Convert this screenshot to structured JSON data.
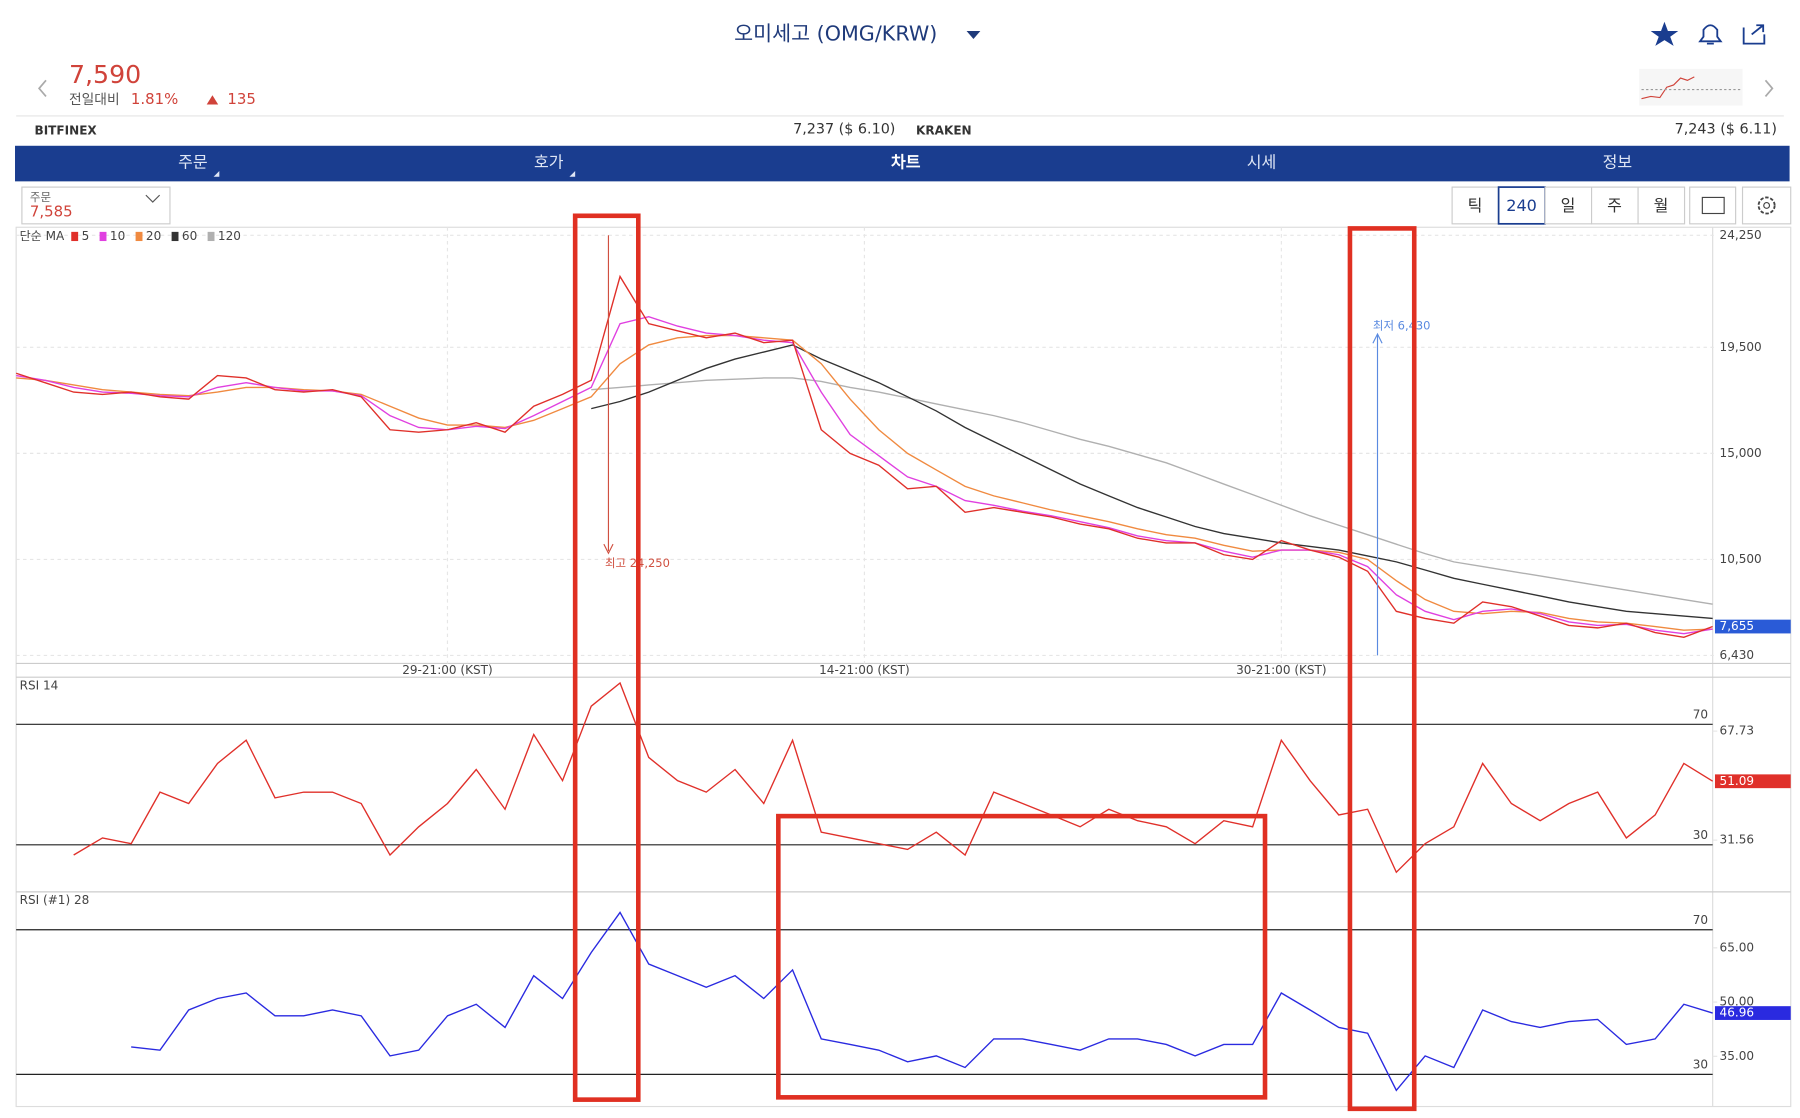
{
  "header": {
    "title": "오미세고 (OMG/KRW)",
    "price": "7,590",
    "change_label": "전일대비",
    "change_pct": "1.81%",
    "change_abs": "135"
  },
  "exchanges": [
    {
      "name": "BITFINEX",
      "price": "7,237 ($ 6.10)"
    },
    {
      "name": "KRAKEN",
      "price": "7,243 ($ 6.11)"
    }
  ],
  "tabs": [
    "주문",
    "호가",
    "차트",
    "시세",
    "정보"
  ],
  "toolbar": {
    "order_label": "주문",
    "order_price": "7,585",
    "periods": [
      "틱",
      "240",
      "일",
      "주",
      "월"
    ]
  },
  "chart_data": [
    {
      "type": "line",
      "legend_title": "단순 MA",
      "grid": true,
      "xlim": [
        0,
        59
      ],
      "xticks": [
        {
          "value": 15,
          "label": "29-21:00 (KST)"
        },
        {
          "value": 29.5,
          "label": "14-21:00 (KST)"
        },
        {
          "value": 44,
          "label": "30-21:00 (KST)"
        }
      ],
      "ylim": [
        6430,
        24250
      ],
      "yticks": [
        {
          "value": 24250,
          "label": "24,250"
        },
        {
          "value": 19500,
          "label": "19,500"
        },
        {
          "value": 15000,
          "label": "15,000"
        },
        {
          "value": 10500,
          "label": "10,500"
        },
        {
          "value": 6430,
          "label": "6,430"
        }
      ],
      "current": {
        "value": 7655,
        "label": "7,655"
      },
      "high": {
        "value": 24250,
        "label": "최고 24,250"
      },
      "low": {
        "value": 6430,
        "label": "최저 6,430"
      },
      "series": [
        {
          "name": "5",
          "color": "#e0302a",
          "values": [
            18400,
            18000,
            17600,
            17500,
            17600,
            17400,
            17300,
            18300,
            18200,
            17700,
            17600,
            17700,
            17400,
            16000,
            15900,
            16000,
            16300,
            15900,
            17000,
            17500,
            18100,
            22500,
            20500,
            20200,
            19900,
            20100,
            19700,
            19800,
            16000,
            15000,
            14500,
            13500,
            13600,
            12500,
            12700,
            12500,
            12300,
            12000,
            11800,
            11400,
            11200,
            11200,
            10700,
            10500,
            11300,
            10900,
            10600,
            10000,
            8300,
            8000,
            7800,
            8700,
            8500,
            8100,
            7700,
            7600,
            7800,
            7400,
            7200,
            7655
          ]
        },
        {
          "name": "10",
          "color": "#e040e0",
          "values": [
            18300,
            18100,
            17800,
            17600,
            17550,
            17450,
            17400,
            17800,
            18000,
            17800,
            17650,
            17650,
            17450,
            16600,
            16100,
            16000,
            16150,
            16050,
            16600,
            17200,
            17800,
            20500,
            20800,
            20400,
            20100,
            20000,
            19800,
            19700,
            17600,
            15800,
            14900,
            14000,
            13600,
            13000,
            12800,
            12550,
            12350,
            12100,
            11850,
            11500,
            11300,
            11200,
            10850,
            10600,
            10900,
            10900,
            10700,
            10200,
            9000,
            8300,
            7950,
            8300,
            8400,
            8200,
            7850,
            7700,
            7750,
            7500,
            7350,
            7550
          ]
        },
        {
          "name": "20",
          "color": "#f08a40",
          "values": [
            18200,
            18100,
            17900,
            17700,
            17600,
            17500,
            17450,
            17600,
            17800,
            17800,
            17700,
            17650,
            17500,
            17000,
            16500,
            16200,
            16200,
            16100,
            16400,
            16900,
            17400,
            18800,
            19600,
            19900,
            20000,
            20000,
            19900,
            19800,
            18800,
            17300,
            16000,
            15000,
            14300,
            13600,
            13200,
            12900,
            12600,
            12350,
            12100,
            11800,
            11550,
            11400,
            11100,
            10850,
            10900,
            10900,
            10800,
            10500,
            9600,
            8800,
            8300,
            8200,
            8300,
            8250,
            8000,
            7850,
            7800,
            7650,
            7500,
            7550
          ]
        },
        {
          "name": "60",
          "color": "#333333",
          "values": [
            null,
            null,
            null,
            null,
            null,
            null,
            null,
            null,
            null,
            null,
            null,
            null,
            null,
            null,
            null,
            null,
            null,
            null,
            null,
            null,
            16900,
            17200,
            17600,
            18100,
            18600,
            19000,
            19300,
            19600,
            19000,
            18500,
            18000,
            17400,
            16800,
            16100,
            15500,
            14900,
            14300,
            13700,
            13200,
            12700,
            12300,
            11900,
            11600,
            11400,
            11200,
            11050,
            10900,
            10650,
            10400,
            10050,
            9700,
            9450,
            9200,
            8950,
            8700,
            8500,
            8300,
            8200,
            8100,
            8000
          ]
        },
        {
          "name": "120",
          "color": "#b0b0b0",
          "values": [
            null,
            null,
            null,
            null,
            null,
            null,
            null,
            null,
            null,
            null,
            null,
            null,
            null,
            null,
            null,
            null,
            null,
            null,
            null,
            null,
            17700,
            17800,
            17900,
            18000,
            18100,
            18150,
            18200,
            18200,
            18050,
            17800,
            17600,
            17350,
            17100,
            16850,
            16600,
            16300,
            15950,
            15600,
            15300,
            14950,
            14600,
            14150,
            13700,
            13250,
            12800,
            12350,
            11950,
            11550,
            11150,
            10750,
            10400,
            10200,
            10000,
            9800,
            9600,
            9400,
            9200,
            9000,
            8800,
            8600
          ]
        }
      ]
    },
    {
      "type": "line",
      "title": "RSI 14",
      "color": "#e0302a",
      "xlim": [
        0,
        59
      ],
      "ylim": [
        15,
        85
      ],
      "ref_lines": [
        70,
        30
      ],
      "yticks": [
        67.73,
        31.56
      ],
      "current": 51.09,
      "values": [
        null,
        null,
        26.6,
        32.3,
        30.4,
        47.5,
        43.7,
        57,
        64.7,
        45.6,
        47.5,
        47.5,
        43.7,
        26.6,
        36,
        43.7,
        55,
        41.8,
        66.6,
        51.3,
        76,
        83.7,
        59,
        51.3,
        47.5,
        55,
        43.7,
        64.7,
        34.2,
        32.3,
        30.4,
        28.5,
        34.2,
        26.6,
        47.5,
        43.7,
        39.9,
        36,
        41.8,
        38,
        36,
        30.4,
        38,
        36,
        64.7,
        51.3,
        39.9,
        41.8,
        20.9,
        30.4,
        36,
        57,
        43.7,
        38,
        43.7,
        47.5,
        32.3,
        39.9,
        57,
        51.09
      ]
    },
    {
      "type": "line",
      "title": "RSI (#1) 28",
      "color": "#2a2ae0",
      "xlim": [
        0,
        59
      ],
      "ylim": [
        22,
        80
      ],
      "ref_lines": [
        70,
        30
      ],
      "yticks": [
        {
          "value": 65,
          "label": "65.00"
        },
        {
          "value": 50,
          "label": "50.00"
        },
        {
          "value": 35,
          "label": "35.00"
        }
      ],
      "current": 46.96,
      "values": [
        null,
        null,
        null,
        null,
        37.6,
        36.7,
        47.8,
        51,
        52.5,
        46.2,
        46.2,
        47.8,
        46.2,
        35.1,
        36.7,
        46.2,
        49.4,
        43,
        57.3,
        51,
        63.7,
        74.8,
        60.5,
        57.3,
        54.1,
        57.3,
        51,
        58.9,
        39.8,
        38.3,
        36.7,
        33.5,
        35.1,
        31.9,
        39.8,
        39.8,
        38.3,
        36.7,
        39.8,
        39.8,
        38.3,
        35.1,
        38.3,
        38.3,
        52.5,
        47.8,
        43,
        41.4,
        25.6,
        35.1,
        31.9,
        47.8,
        44.6,
        43,
        44.6,
        45.2,
        38.3,
        39.8,
        49.4,
        46.96
      ]
    }
  ]
}
